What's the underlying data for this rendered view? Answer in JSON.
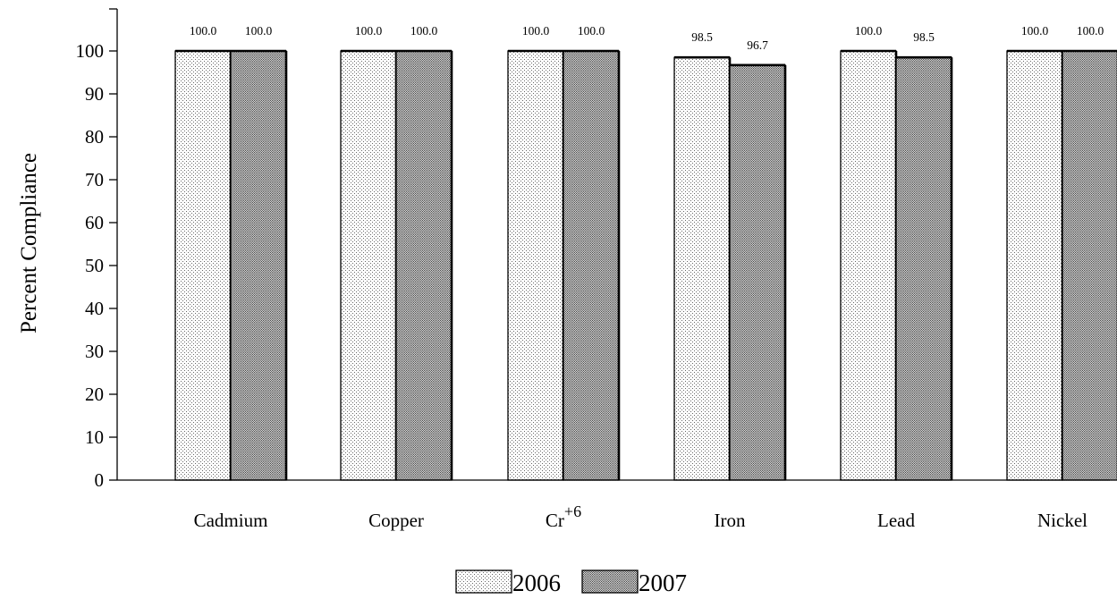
{
  "chart_data": {
    "type": "bar",
    "categories": [
      "Cadmium",
      "Copper",
      "Cr+6",
      "Iron",
      "Lead",
      "Nickel"
    ],
    "category_labels": [
      {
        "base": "Cadmium",
        "sup": ""
      },
      {
        "base": "Copper",
        "sup": ""
      },
      {
        "base": "Cr",
        "sup": "+6"
      },
      {
        "base": "Iron",
        "sup": ""
      },
      {
        "base": "Lead",
        "sup": ""
      },
      {
        "base": "Nickel",
        "sup": ""
      }
    ],
    "series": [
      {
        "name": "2006",
        "values": [
          100.0,
          100.0,
          100.0,
          98.5,
          100.0,
          100.0
        ],
        "pattern": "light-dots"
      },
      {
        "name": "2007",
        "values": [
          100.0,
          100.0,
          100.0,
          96.7,
          98.5,
          100.0
        ],
        "pattern": "dense-dots"
      }
    ],
    "data_labels": [
      [
        "100.0",
        "100.0",
        "100.0",
        "98.5",
        "100.0",
        "100.0"
      ],
      [
        "100.0",
        "100.0",
        "100.0",
        "96.7",
        "98.5",
        "100.0"
      ]
    ],
    "ylabel": "Percent Compliance",
    "xlabel": "",
    "title": "",
    "ylim": [
      0,
      100
    ],
    "yticks": [
      0,
      10,
      20,
      30,
      40,
      50,
      60,
      70,
      80,
      90,
      100
    ],
    "grid": false,
    "legend_position": "bottom-center"
  }
}
